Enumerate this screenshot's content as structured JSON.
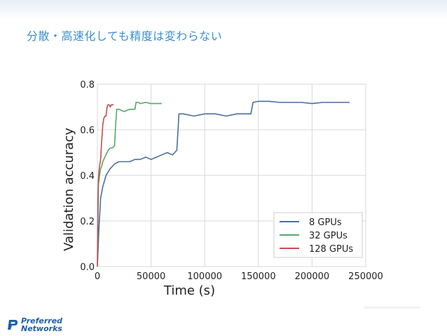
{
  "slide": {
    "title": "分散・高速化しても精度は変わらない"
  },
  "logo": {
    "line1": "Preferred",
    "line2": "Networks"
  },
  "chart_data": {
    "type": "line",
    "xlabel": "Time (s)",
    "ylabel": "Validation accuracy",
    "xlim": [
      0,
      250000
    ],
    "ylim": [
      0,
      0.8
    ],
    "xticks": [
      0,
      50000,
      100000,
      150000,
      200000,
      250000
    ],
    "yticks": [
      0.0,
      0.2,
      0.4,
      0.6,
      0.8
    ],
    "grid": true,
    "legend_position": "lower-right",
    "series": [
      {
        "name": "8 GPUs",
        "color": "#4a6f9e",
        "x": [
          0,
          1500,
          3000,
          5000,
          8000,
          12000,
          16000,
          20000,
          25000,
          30000,
          35000,
          40000,
          45000,
          50000,
          55000,
          60000,
          65000,
          70000,
          72000,
          74000,
          76000,
          80000,
          90000,
          100000,
          110000,
          120000,
          130000,
          140000,
          143000,
          145000,
          150000,
          160000,
          170000,
          180000,
          190000,
          200000,
          210000,
          220000,
          235000
        ],
        "y": [
          0.0,
          0.17,
          0.3,
          0.35,
          0.4,
          0.43,
          0.45,
          0.46,
          0.46,
          0.46,
          0.47,
          0.47,
          0.48,
          0.47,
          0.48,
          0.49,
          0.5,
          0.49,
          0.5,
          0.51,
          0.67,
          0.67,
          0.66,
          0.67,
          0.67,
          0.66,
          0.67,
          0.67,
          0.67,
          0.72,
          0.725,
          0.725,
          0.72,
          0.72,
          0.72,
          0.715,
          0.72,
          0.72,
          0.72
        ]
      },
      {
        "name": "32 GPUs",
        "color": "#55a868",
        "x": [
          0,
          1000,
          2000,
          3000,
          4000,
          5000,
          6000,
          7000,
          8000,
          9000,
          10000,
          12000,
          14000,
          16000,
          17000,
          18000,
          20000,
          25000,
          30000,
          35000,
          36000,
          38000,
          40000,
          45000,
          50000,
          55000,
          60000
        ],
        "y": [
          0.0,
          0.36,
          0.4,
          0.43,
          0.44,
          0.46,
          0.47,
          0.48,
          0.49,
          0.5,
          0.51,
          0.52,
          0.52,
          0.53,
          0.62,
          0.69,
          0.69,
          0.68,
          0.69,
          0.69,
          0.72,
          0.72,
          0.715,
          0.72,
          0.715,
          0.715,
          0.715
        ]
      },
      {
        "name": "128 GPUs",
        "color": "#c44e52",
        "x": [
          0,
          500,
          1000,
          1500,
          2000,
          3000,
          4000,
          5000,
          6000,
          7000,
          8000,
          9000,
          10000,
          11000,
          12000,
          13000,
          14000,
          15000
        ],
        "y": [
          0.0,
          0.3,
          0.38,
          0.42,
          0.44,
          0.47,
          0.55,
          0.62,
          0.65,
          0.66,
          0.66,
          0.7,
          0.71,
          0.71,
          0.7,
          0.71,
          0.71,
          0.71
        ]
      }
    ]
  }
}
